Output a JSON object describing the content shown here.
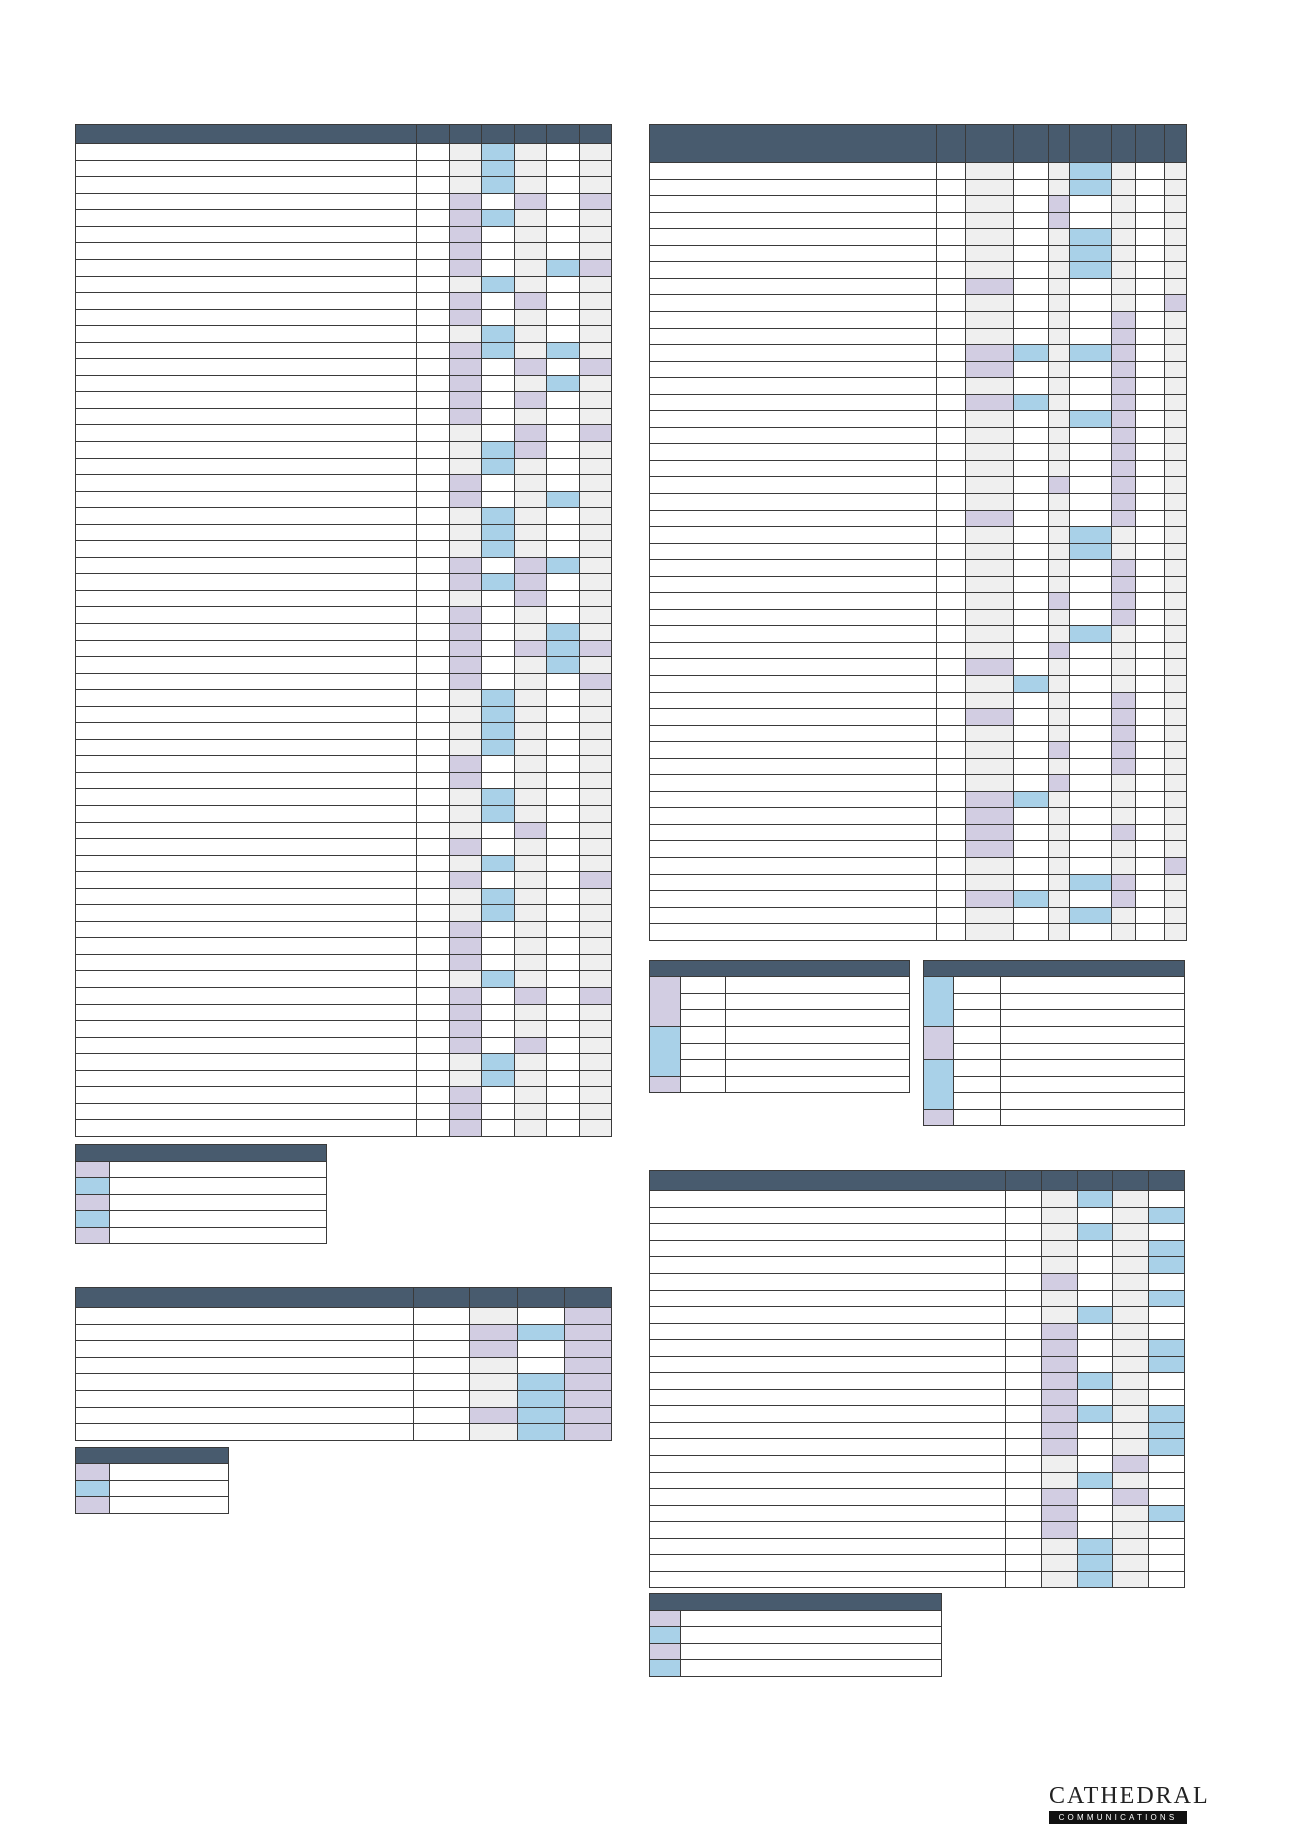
{
  "logo": {
    "name": "CATHEDRAL",
    "tagline": "COMMUNICATIONS"
  }
}
